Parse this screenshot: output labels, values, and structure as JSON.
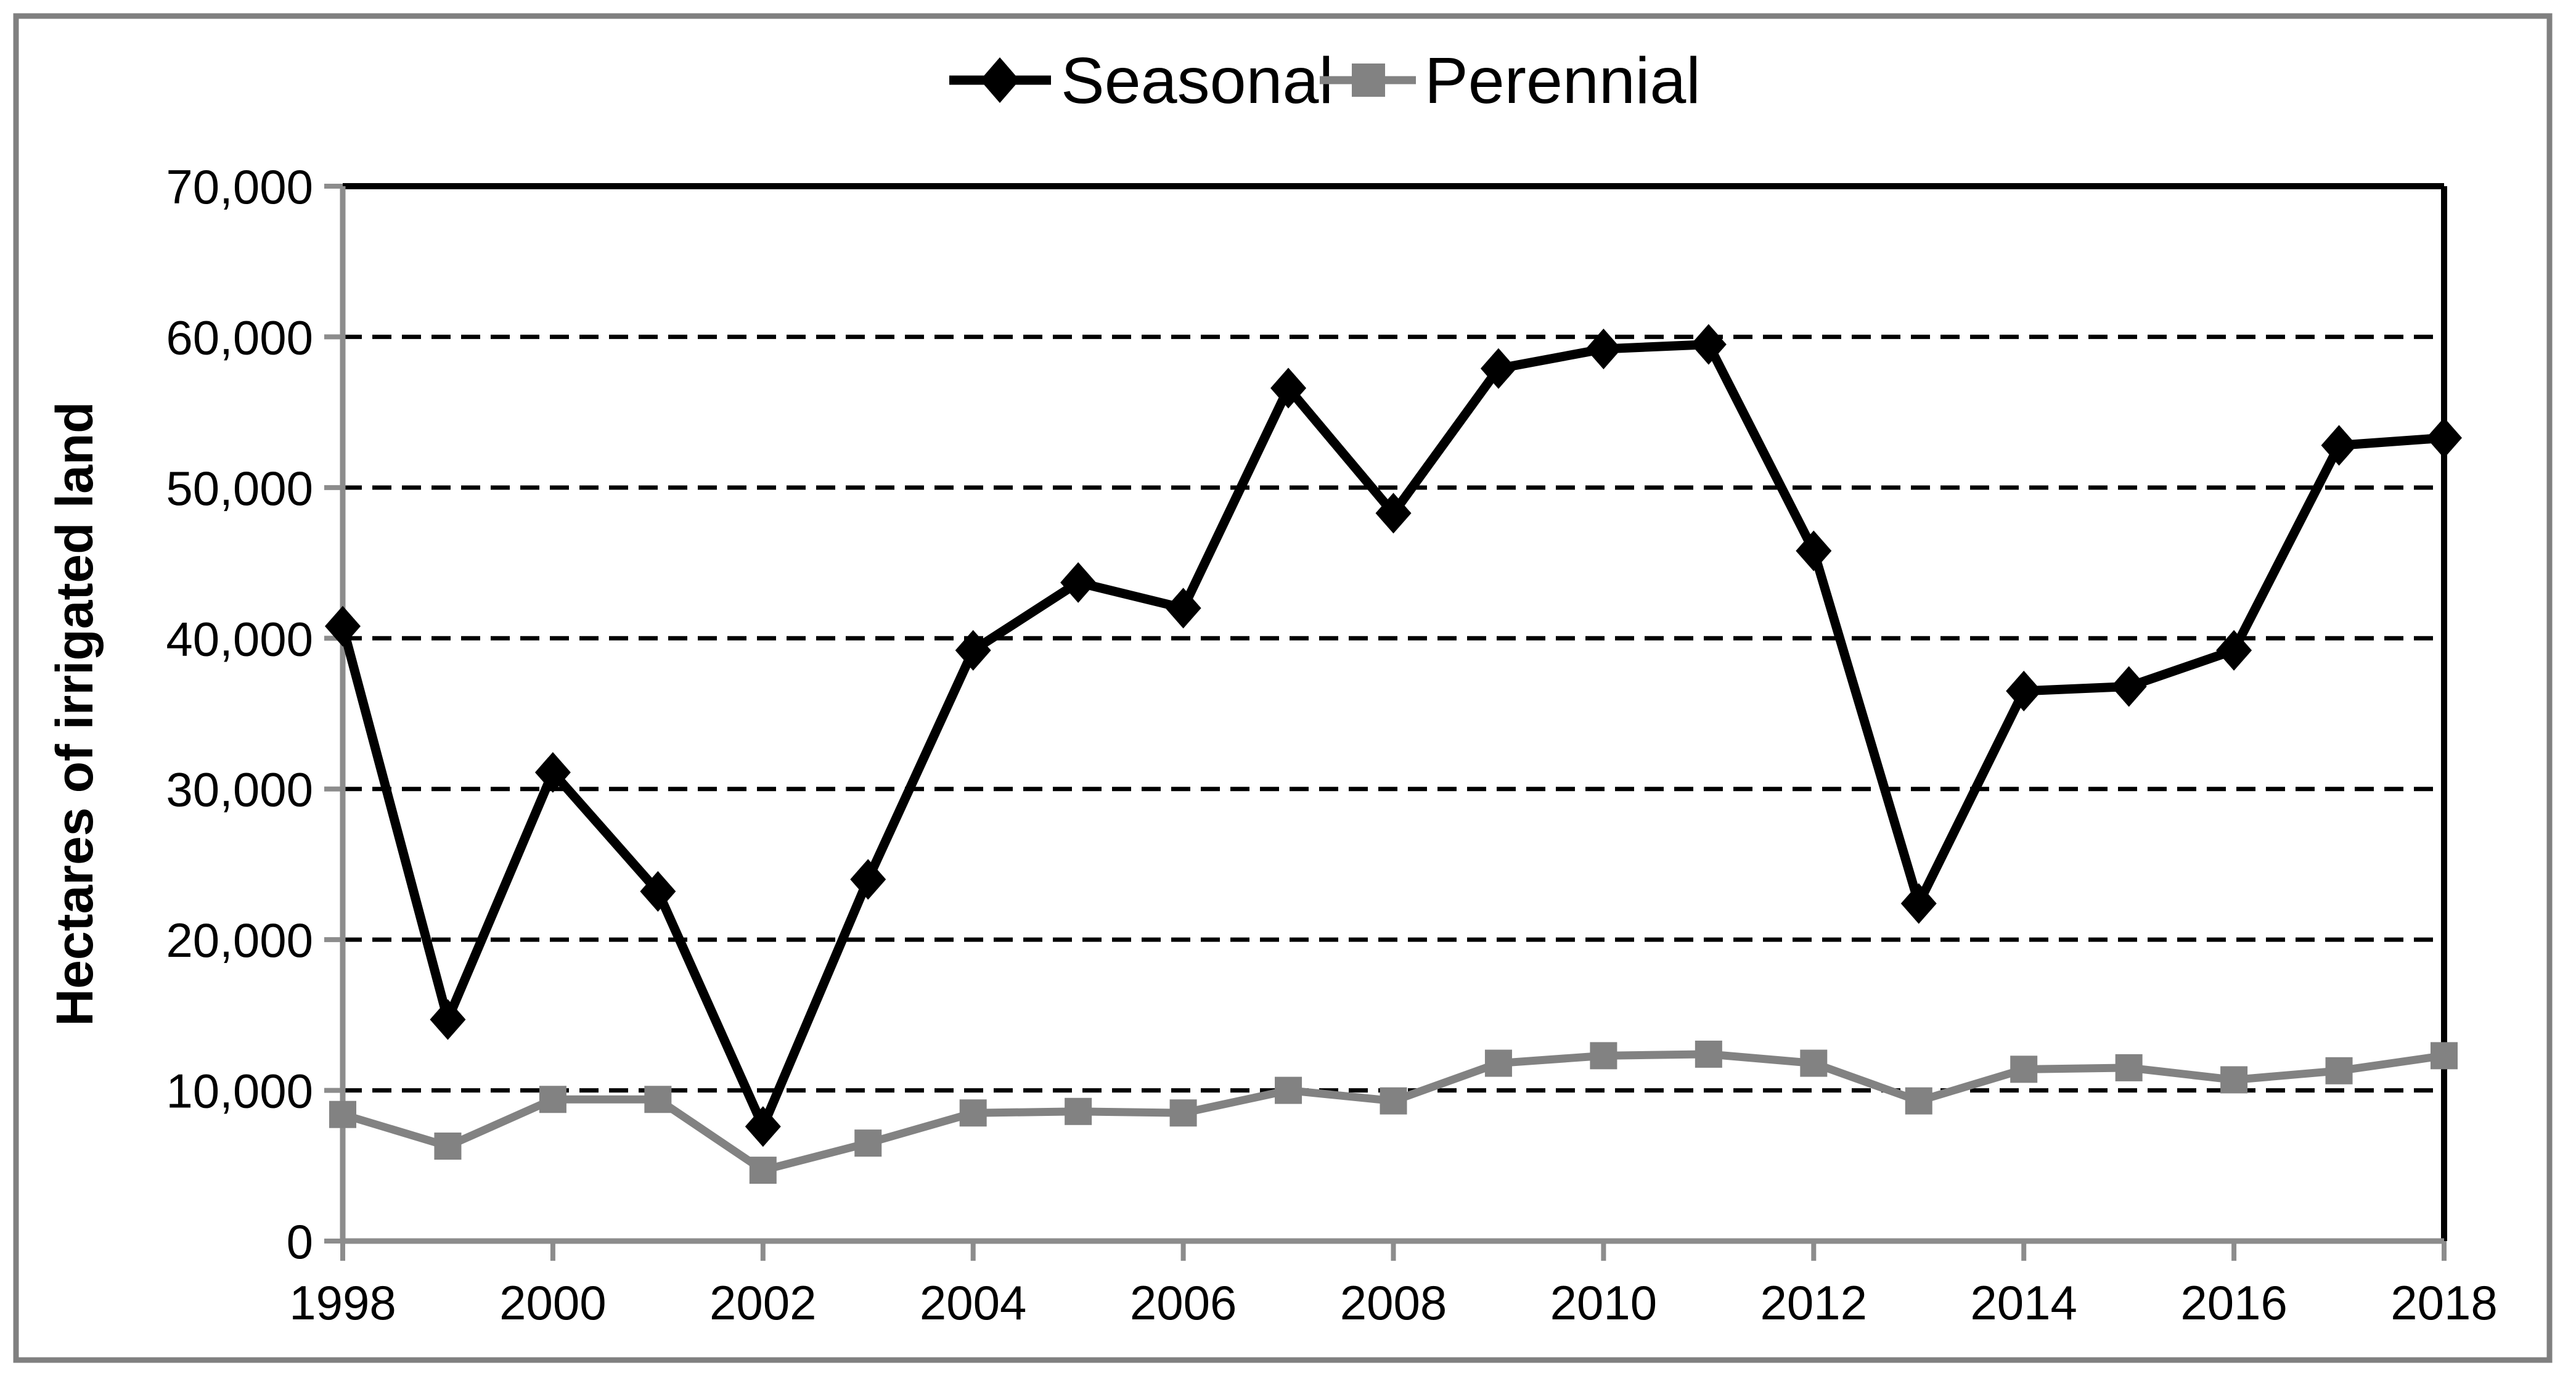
{
  "figure": {
    "background": "#ffffff",
    "border_color": "#808080",
    "axis_color": "#8c8c8c",
    "gridline_color": "#000000",
    "text_color": "#000000"
  },
  "chart_data": {
    "type": "line",
    "title": "",
    "xlabel": "",
    "ylabel": "Hectares of irrigated land",
    "ylim": [
      0,
      70000
    ],
    "ytick_step": 10000,
    "grid": "horizontal-dashed",
    "legend_position": "top-center",
    "x": [
      1998,
      1999,
      2000,
      2001,
      2002,
      2003,
      2004,
      2005,
      2006,
      2007,
      2008,
      2009,
      2010,
      2011,
      2012,
      2013,
      2014,
      2015,
      2016,
      2017,
      2018
    ],
    "xtick_labels": [
      "1998",
      "2000",
      "2002",
      "2004",
      "2006",
      "2008",
      "2010",
      "2012",
      "2014",
      "2016",
      "2018"
    ],
    "ytick_labels": [
      "0",
      "10,000",
      "20,000",
      "30,000",
      "40,000",
      "50,000",
      "60,000",
      "70,000"
    ],
    "series": [
      {
        "name": "Seasonal",
        "color": "#000000",
        "marker": "diamond",
        "values": [
          40800,
          14700,
          31100,
          23200,
          7600,
          24000,
          39200,
          43700,
          42000,
          56600,
          48300,
          57900,
          59200,
          59500,
          45800,
          22400,
          36500,
          36800,
          39200,
          52800,
          53300
        ]
      },
      {
        "name": "Perennial",
        "color": "#828282",
        "marker": "square",
        "values": [
          8400,
          6300,
          9400,
          9400,
          4700,
          6500,
          8500,
          8600,
          8500,
          10000,
          9300,
          11800,
          12300,
          12400,
          11800,
          9300,
          11400,
          11500,
          10700,
          11300,
          12300
        ]
      }
    ]
  }
}
